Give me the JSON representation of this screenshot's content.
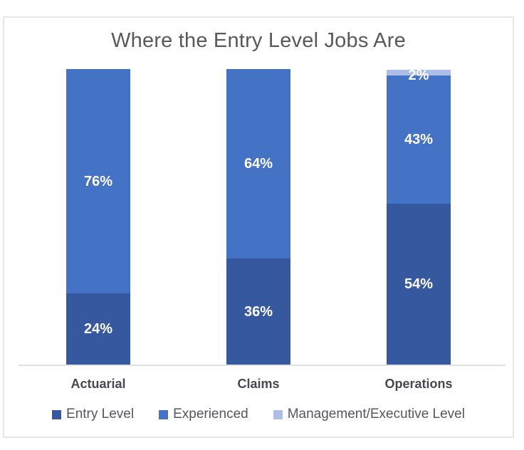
{
  "chart_data": {
    "type": "bar",
    "stacked": true,
    "percent_stacked": true,
    "title": "Where the Entry Level Jobs Are",
    "categories": [
      "Actuarial",
      "Claims",
      "Operations"
    ],
    "series": [
      {
        "name": "Entry Level",
        "color": "#35589E",
        "values": [
          24,
          36,
          54
        ],
        "data_labels": [
          "24%",
          "36%",
          "54%"
        ]
      },
      {
        "name": "Experienced",
        "color": "#4472C4",
        "values": [
          76,
          64,
          43
        ],
        "data_labels": [
          "76%",
          "64%",
          "43%"
        ]
      },
      {
        "name": "Management/Executive Level",
        "color": "#AEBDE7",
        "values": [
          0,
          0,
          2
        ],
        "data_labels": [
          "",
          "",
          "2%"
        ]
      }
    ],
    "xlabel": "",
    "ylabel": "",
    "ylim": [
      0,
      100
    ],
    "grid": false,
    "y_axis_visible": false,
    "legend_position": "bottom",
    "colors": {
      "title_text": "#595959",
      "category_text": "#45494e",
      "legend_text": "#55575b",
      "data_label_text": "#ffffff",
      "axis_line": "#e0e0e0",
      "frame_border": "#e7e7e7",
      "background": "#ffffff"
    }
  }
}
